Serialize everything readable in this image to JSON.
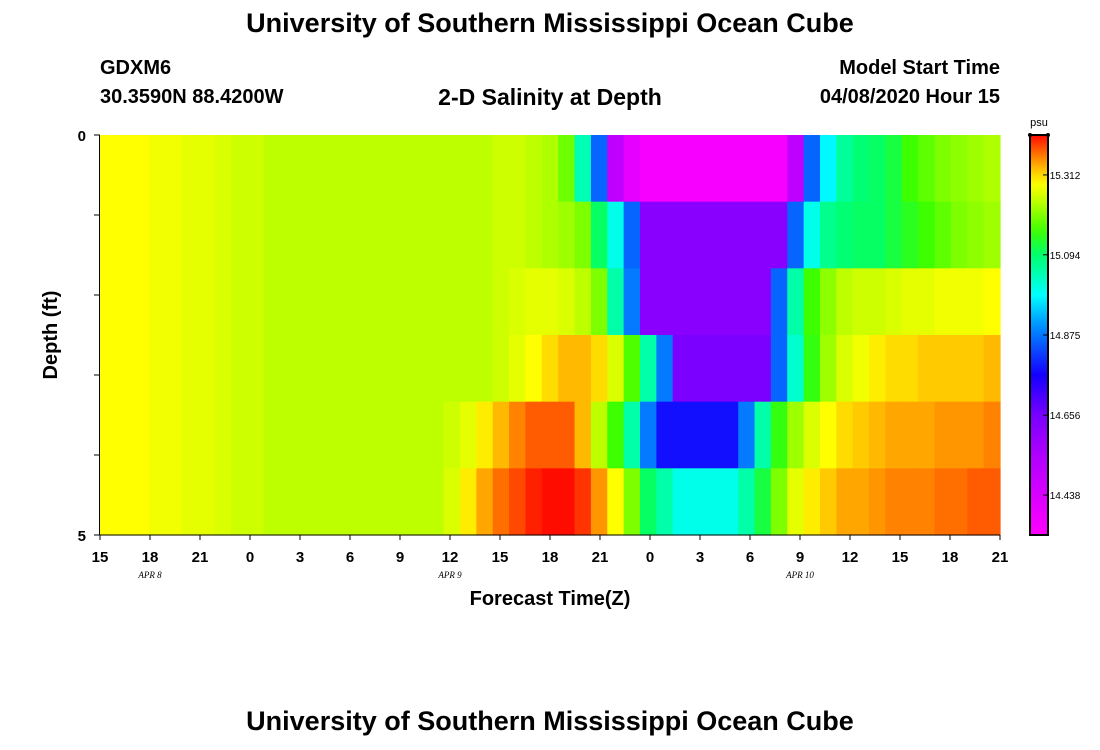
{
  "header": {
    "title": "University of Southern Mississippi Ocean Cube",
    "station": "GDXM6",
    "coordinates": "30.3590N 88.4200W",
    "plot_title": "2-D Salinity at Depth",
    "model_start_label": "Model Start Time",
    "model_start_value": "04/08/2020 Hour 15"
  },
  "footer": {
    "title": "University of Southern Mississippi Ocean Cube"
  },
  "chart_data": {
    "type": "heatmap",
    "title": "2-D Salinity at Depth",
    "xlabel": "Forecast Time(Z)",
    "ylabel": "Depth (ft)",
    "x_tick_labels": [
      "15",
      "18",
      "21",
      "0",
      "3",
      "6",
      "9",
      "12",
      "15",
      "18",
      "21",
      "0",
      "3",
      "6",
      "9",
      "12",
      "15",
      "18",
      "21"
    ],
    "date_labels": [
      {
        "label": "APR 8",
        "tick_index": 1
      },
      {
        "label": "APR 9",
        "tick_index": 7
      },
      {
        "label": "APR 10",
        "tick_index": 14
      }
    ],
    "y_tick_labels": [
      "0",
      "5"
    ],
    "ylim": [
      0,
      5
    ],
    "colorbar": {
      "unit": "psu",
      "tick_labels": [
        "15.312",
        "15.094",
        "14.875",
        "14.656",
        "14.438"
      ],
      "tick_values": [
        15.312,
        15.094,
        14.875,
        14.656,
        14.438
      ],
      "range": [
        14.329,
        15.421
      ]
    },
    "time_steps": [
      "15",
      "16",
      "17",
      "18",
      "19",
      "20",
      "21",
      "22",
      "23",
      "0",
      "1",
      "2",
      "3",
      "4",
      "5",
      "6",
      "7",
      "8",
      "9",
      "10",
      "11",
      "12",
      "13",
      "14",
      "15",
      "16",
      "17",
      "18",
      "19",
      "20",
      "21",
      "22",
      "23",
      "0",
      "1",
      "2",
      "3",
      "4",
      "5",
      "6",
      "7",
      "8",
      "9",
      "10",
      "11",
      "12",
      "13",
      "14",
      "15",
      "16",
      "17",
      "18",
      "19",
      "20",
      "21"
    ],
    "depth_layers": [
      0,
      1,
      2,
      3,
      4,
      5
    ],
    "values": [
      [
        15.29,
        15.29,
        15.29,
        15.28,
        15.28,
        15.27,
        15.27,
        15.26,
        15.25,
        15.25,
        15.24,
        15.24,
        15.24,
        15.24,
        15.24,
        15.24,
        15.24,
        15.24,
        15.24,
        15.24,
        15.24,
        15.24,
        15.24,
        15.24,
        15.25,
        15.25,
        15.24,
        15.23,
        15.19,
        15.04,
        14.86,
        14.5,
        14.4,
        14.35,
        14.35,
        14.35,
        14.35,
        14.35,
        14.35,
        14.35,
        14.35,
        14.35,
        14.5,
        14.86,
        14.98,
        15.06,
        15.09,
        15.1,
        15.12,
        15.16,
        15.18,
        15.2,
        15.21,
        15.22,
        15.23
      ],
      [
        15.29,
        15.29,
        15.29,
        15.28,
        15.28,
        15.27,
        15.27,
        15.26,
        15.25,
        15.25,
        15.24,
        15.24,
        15.24,
        15.24,
        15.24,
        15.24,
        15.24,
        15.24,
        15.24,
        15.24,
        15.24,
        15.24,
        15.24,
        15.24,
        15.25,
        15.25,
        15.24,
        15.23,
        15.22,
        15.2,
        15.1,
        15.0,
        14.86,
        14.62,
        14.62,
        14.62,
        14.62,
        14.62,
        14.62,
        14.62,
        14.62,
        14.62,
        14.86,
        15.0,
        15.07,
        15.09,
        15.1,
        15.1,
        15.12,
        15.14,
        15.16,
        15.18,
        15.2,
        15.21,
        15.22
      ],
      [
        15.29,
        15.29,
        15.29,
        15.28,
        15.28,
        15.27,
        15.27,
        15.26,
        15.25,
        15.25,
        15.24,
        15.24,
        15.24,
        15.24,
        15.24,
        15.24,
        15.24,
        15.24,
        15.24,
        15.24,
        15.24,
        15.24,
        15.24,
        15.24,
        15.25,
        15.26,
        15.27,
        15.27,
        15.26,
        15.24,
        15.2,
        15.05,
        14.88,
        14.62,
        14.62,
        14.62,
        14.62,
        14.62,
        14.62,
        14.62,
        14.62,
        14.86,
        15.05,
        15.16,
        15.21,
        15.24,
        15.25,
        15.25,
        15.26,
        15.27,
        15.27,
        15.28,
        15.28,
        15.28,
        15.29
      ],
      [
        15.29,
        15.29,
        15.29,
        15.28,
        15.28,
        15.27,
        15.27,
        15.26,
        15.25,
        15.25,
        15.24,
        15.24,
        15.24,
        15.24,
        15.24,
        15.24,
        15.24,
        15.24,
        15.24,
        15.24,
        15.24,
        15.24,
        15.24,
        15.24,
        15.25,
        15.27,
        15.29,
        15.31,
        15.33,
        15.33,
        15.31,
        15.26,
        15.17,
        15.05,
        14.88,
        14.65,
        14.65,
        14.65,
        14.65,
        14.65,
        14.65,
        14.86,
        15.02,
        15.15,
        15.22,
        15.26,
        15.28,
        15.3,
        15.31,
        15.31,
        15.32,
        15.32,
        15.32,
        15.32,
        15.33
      ],
      [
        15.29,
        15.29,
        15.29,
        15.28,
        15.28,
        15.27,
        15.27,
        15.26,
        15.25,
        15.25,
        15.24,
        15.24,
        15.24,
        15.24,
        15.24,
        15.24,
        15.24,
        15.24,
        15.24,
        15.24,
        15.24,
        15.25,
        15.27,
        15.3,
        15.33,
        15.36,
        15.38,
        15.38,
        15.38,
        15.33,
        15.24,
        15.16,
        15.05,
        14.88,
        14.78,
        14.78,
        14.78,
        14.78,
        14.78,
        14.88,
        15.05,
        15.15,
        15.22,
        15.26,
        15.29,
        15.31,
        15.32,
        15.33,
        15.34,
        15.34,
        15.34,
        15.35,
        15.35,
        15.35,
        15.36
      ],
      [
        15.29,
        15.29,
        15.29,
        15.28,
        15.28,
        15.27,
        15.27,
        15.26,
        15.25,
        15.25,
        15.24,
        15.24,
        15.24,
        15.24,
        15.24,
        15.24,
        15.24,
        15.24,
        15.24,
        15.24,
        15.24,
        15.26,
        15.3,
        15.34,
        15.37,
        15.39,
        15.41,
        15.42,
        15.42,
        15.4,
        15.35,
        15.29,
        15.2,
        15.1,
        15.05,
        15.0,
        15.0,
        15.0,
        15.0,
        15.05,
        15.12,
        15.2,
        15.27,
        15.3,
        15.32,
        15.34,
        15.34,
        15.35,
        15.36,
        15.36,
        15.36,
        15.37,
        15.37,
        15.38,
        15.38
      ]
    ]
  }
}
